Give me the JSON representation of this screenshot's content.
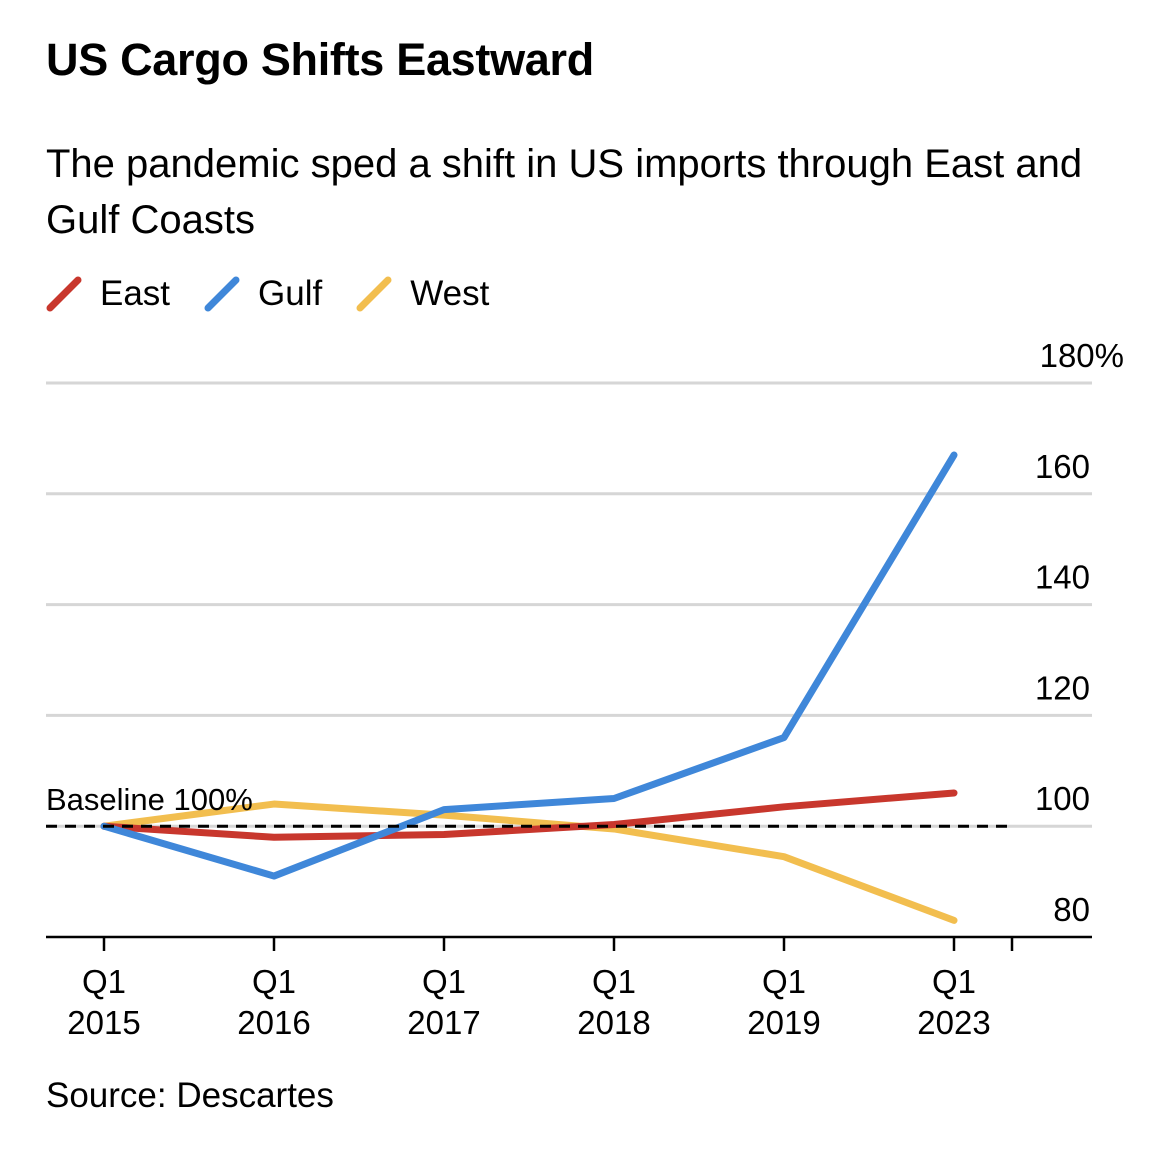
{
  "title": "US Cargo Shifts Eastward",
  "subtitle": "The pandemic sped a shift in US imports through East and Gulf Coasts",
  "source": "Source: Descartes",
  "chart_data": {
    "type": "line",
    "x": [
      {
        "line1": "Q1",
        "line2": "2015"
      },
      {
        "line1": "Q1",
        "line2": "2016"
      },
      {
        "line1": "Q1",
        "line2": "2017"
      },
      {
        "line1": "Q1",
        "line2": "2018"
      },
      {
        "line1": "Q1",
        "line2": "2019"
      },
      {
        "line1": "Q1",
        "line2": "2023"
      }
    ],
    "series": [
      {
        "name": "East",
        "color": "#c8372d",
        "values": [
          100,
          98,
          98.5,
          100.3,
          103.5,
          106
        ]
      },
      {
        "name": "Gulf",
        "color": "#3f87d9",
        "values": [
          100,
          91,
          103,
          105,
          116,
          167
        ]
      },
      {
        "name": "West",
        "color": "#f2be4f",
        "values": [
          100,
          104,
          102,
          99.5,
          94.5,
          83
        ]
      }
    ],
    "y_ticks": [
      {
        "value": 180,
        "label": "180%"
      },
      {
        "value": 160,
        "label": "160"
      },
      {
        "value": 140,
        "label": "140"
      },
      {
        "value": 120,
        "label": "120"
      },
      {
        "value": 100,
        "label": "100"
      },
      {
        "value": 80,
        "label": "80"
      }
    ],
    "ylim": [
      80,
      180
    ],
    "grid": true,
    "baseline": {
      "value": 100,
      "label": "Baseline 100%"
    },
    "legend_position": "top-left"
  }
}
